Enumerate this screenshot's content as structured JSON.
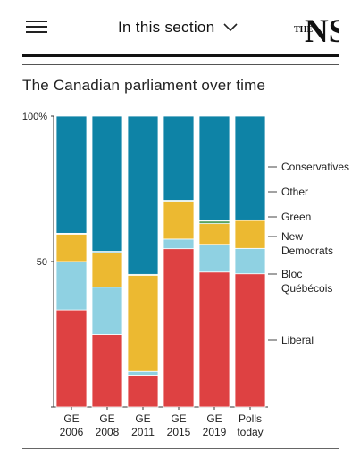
{
  "header": {
    "menu_icon": "hamburger-menu-icon",
    "section_label": "In this section",
    "chevron_icon": "chevron-down-icon",
    "logo_letters": [
      "THE",
      "NS"
    ]
  },
  "chart_title": "The Canadian parliament over time",
  "colors": {
    "Liberal": "#de4142",
    "Bloc Québécois": "#8fd1e2",
    "New Democrats": "#ecb931",
    "Green": "#58a35f",
    "Other": "#bfe2ee",
    "Conservatives": "#0e83a6"
  },
  "chart_data": {
    "type": "bar",
    "stacked": true,
    "categories": [
      [
        "GE",
        "2006"
      ],
      [
        "GE",
        "2008"
      ],
      [
        "GE",
        "2011"
      ],
      [
        "GE",
        "2015"
      ],
      [
        "GE",
        "2019"
      ],
      [
        "Polls",
        "today"
      ]
    ],
    "yticks": [
      "100%",
      "50"
    ],
    "ylim": [
      0,
      100
    ],
    "series": [
      {
        "name": "Liberal",
        "values": [
          33.4,
          25,
          10.9,
          54.4,
          46.4,
          45.8
        ]
      },
      {
        "name": "Bloc Québécois",
        "values": [
          16.6,
          16.2,
          1.3,
          3.3,
          9.5,
          8.7
        ]
      },
      {
        "name": "New Democrats",
        "values": [
          9.4,
          11.7,
          33.1,
          13,
          7.1,
          9.6
        ]
      },
      {
        "name": "Green",
        "values": [
          0,
          0,
          0.3,
          0.3,
          0.9,
          0.2
        ]
      },
      {
        "name": "Other",
        "values": [
          0.3,
          0.6,
          0,
          0,
          0.3,
          0
        ]
      },
      {
        "name": "Conservatives",
        "values": [
          40.3,
          46.5,
          54.4,
          29,
          35.8,
          35.7
        ]
      }
    ],
    "legend": [
      {
        "series": "Conservatives",
        "text": "Conservatives"
      },
      {
        "series": "Other",
        "text": "Other"
      },
      {
        "series": "Green",
        "text": "Green"
      },
      {
        "series": "New Democrats",
        "text": "New Democrats"
      },
      {
        "series": "Bloc Québécois",
        "text": "Bloc Québécois"
      },
      {
        "series": "Liberal",
        "text": "Liberal"
      }
    ],
    "legend_placement": "right"
  }
}
